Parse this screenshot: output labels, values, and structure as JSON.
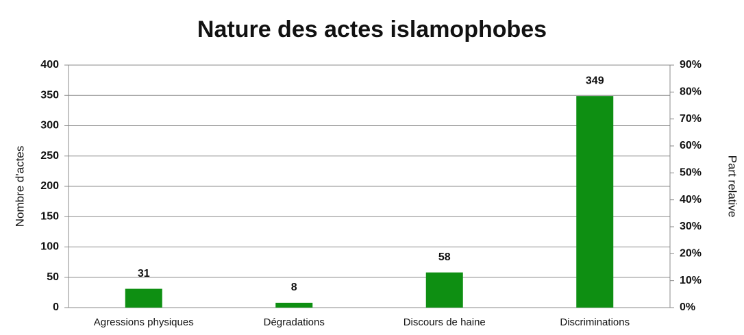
{
  "chart_data": {
    "type": "bar",
    "title": "Nature des actes islamophobes",
    "categories": [
      "Agressions physiques",
      "Dégradations",
      "Discours de haine",
      "Discriminations"
    ],
    "values": [
      31,
      8,
      58,
      349
    ],
    "color": "#0e8f12",
    "ylabel": "Nombre d'actes",
    "y2label": "Part relative",
    "ylim": [
      0,
      400
    ],
    "yticks": [
      0,
      50,
      100,
      150,
      200,
      250,
      300,
      350,
      400
    ],
    "y2lim": [
      0,
      90
    ],
    "y2ticks": [
      {
        "value": 0,
        "label": "0%"
      },
      {
        "value": 10,
        "label": "10%"
      },
      {
        "value": 20,
        "label": "20%"
      },
      {
        "value": 30,
        "label": "30%"
      },
      {
        "value": 40,
        "label": "40%"
      },
      {
        "value": 50,
        "label": "50%"
      },
      {
        "value": 60,
        "label": "60%"
      },
      {
        "value": 70,
        "label": "70%"
      },
      {
        "value": 80,
        "label": "80%"
      },
      {
        "value": 90,
        "label": "90%"
      }
    ],
    "grid": true
  }
}
